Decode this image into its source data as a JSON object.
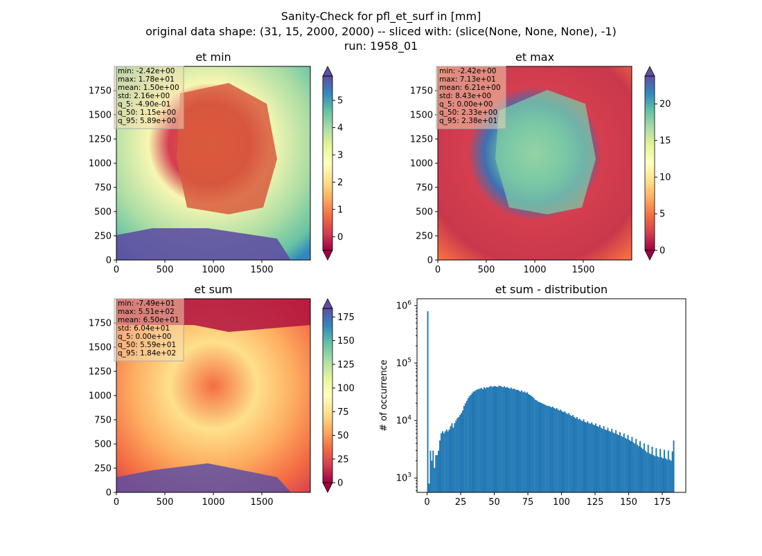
{
  "figure": {
    "title_line1": "Sanity-Check for pfl_et_surf in [mm]",
    "title_line2": "original data shape: (31, 15, 2000, 2000) -- sliced with: (slice(None, None, None), -1)",
    "title_line3": "run: 1958_01"
  },
  "colors": {
    "hist_bar": "#1f77b4",
    "stats_box": "#f5deb3",
    "spectral": [
      "#9e0142",
      "#d53e4f",
      "#f46d43",
      "#fdae61",
      "#fee08b",
      "#ffffbf",
      "#e6f598",
      "#abdda4",
      "#66c2a5",
      "#3288bd",
      "#5e4fa2"
    ]
  },
  "chart_data": [
    {
      "type": "heatmap",
      "title": "et min",
      "x_ticks": [
        "0",
        "500",
        "1000",
        "1500"
      ],
      "y_ticks": [
        "0",
        "250",
        "500",
        "750",
        "1000",
        "1250",
        "1500",
        "1750"
      ],
      "xlim": [
        0,
        2000
      ],
      "ylim": [
        0,
        2000
      ],
      "colormap": "Spectral",
      "colorbar": {
        "ticks": [
          "0",
          "1",
          "2",
          "3",
          "4",
          "5"
        ],
        "range": [
          -0.5,
          5.89
        ],
        "extend": "both"
      },
      "stats": [
        "min: -2.42e+00",
        "max: 1.78e+01",
        "mean: 1.50e+00",
        "std: 2.16e+00",
        "q_5: -4.90e-01",
        "q_50: 1.15e+00",
        "q_95: 5.89e+00"
      ]
    },
    {
      "type": "heatmap",
      "title": "et max",
      "x_ticks": [
        "0",
        "500",
        "1000",
        "1500"
      ],
      "y_ticks": [
        "0",
        "250",
        "500",
        "750",
        "1000",
        "1250",
        "1500",
        "1750"
      ],
      "xlim": [
        0,
        2000
      ],
      "ylim": [
        0,
        2000
      ],
      "colormap": "Spectral",
      "colorbar": {
        "ticks": [
          "0",
          "5",
          "10",
          "15",
          "20"
        ],
        "range": [
          0,
          23.8
        ],
        "extend": "both"
      },
      "stats": [
        "min: -2.42e+00",
        "max: 7.13e+01",
        "mean: 6.21e+00",
        "std: 8.43e+00",
        "q_5: 0.00e+00",
        "q_50: 2.33e+00",
        "q_95: 2.38e+01"
      ]
    },
    {
      "type": "heatmap",
      "title": "et sum",
      "x_ticks": [
        "0",
        "500",
        "1000",
        "1500"
      ],
      "y_ticks": [
        "0",
        "250",
        "500",
        "750",
        "1000",
        "1250",
        "1500",
        "1750"
      ],
      "xlim": [
        0,
        2000
      ],
      "ylim": [
        0,
        2000
      ],
      "colormap": "Spectral",
      "colorbar": {
        "ticks": [
          "0",
          "25",
          "50",
          "75",
          "100",
          "125",
          "150",
          "175"
        ],
        "range": [
          0,
          184
        ],
        "extend": "both"
      },
      "stats": [
        "min: -7.49e+01",
        "max: 5.51e+02",
        "mean: 6.50e+01",
        "std: 6.04e+01",
        "q_5: 0.00e+00",
        "q_50: 5.59e+01",
        "q_95: 1.84e+02"
      ]
    },
    {
      "type": "bar",
      "title": "et sum - distribution",
      "ylabel": "# of occurrence",
      "xlabel": "",
      "x_ticks": [
        "0",
        "25",
        "50",
        "75",
        "100",
        "125",
        "150",
        "175"
      ],
      "y_ticks": [
        {
          "base": "10",
          "exp": "3"
        },
        {
          "base": "10",
          "exp": "4"
        },
        {
          "base": "10",
          "exp": "5"
        },
        {
          "base": "10",
          "exp": "6"
        }
      ],
      "xlim": [
        -7.5,
        192.5
      ],
      "ylog": true,
      "ylim_log10": [
        2.75,
        6.12
      ],
      "bin_width": 1,
      "x": [
        0,
        1,
        2,
        3,
        4,
        5,
        6,
        7,
        8,
        9,
        10,
        11,
        12,
        13,
        14,
        15,
        16,
        17,
        18,
        19,
        20,
        21,
        22,
        23,
        24,
        25,
        26,
        27,
        28,
        29,
        30,
        31,
        32,
        33,
        34,
        35,
        36,
        37,
        38,
        39,
        40,
        41,
        42,
        43,
        44,
        45,
        46,
        47,
        48,
        49,
        50,
        51,
        52,
        53,
        54,
        55,
        56,
        57,
        58,
        59,
        60,
        61,
        62,
        63,
        64,
        65,
        66,
        67,
        68,
        69,
        70,
        71,
        72,
        73,
        74,
        75,
        76,
        77,
        78,
        79,
        80,
        81,
        82,
        83,
        84,
        85,
        86,
        87,
        88,
        89,
        90,
        91,
        92,
        93,
        94,
        95,
        96,
        97,
        98,
        99,
        100,
        101,
        102,
        103,
        104,
        105,
        106,
        107,
        108,
        109,
        110,
        111,
        112,
        113,
        114,
        115,
        116,
        117,
        118,
        119,
        120,
        121,
        122,
        123,
        124,
        125,
        126,
        127,
        128,
        129,
        130,
        131,
        132,
        133,
        134,
        135,
        136,
        137,
        138,
        139,
        140,
        141,
        142,
        143,
        144,
        145,
        146,
        147,
        148,
        149,
        150,
        151,
        152,
        153,
        154,
        155,
        156,
        157,
        158,
        159,
        160,
        161,
        162,
        163,
        164,
        165,
        166,
        167,
        168,
        169,
        170,
        171,
        172,
        173,
        174,
        175,
        176,
        177,
        178,
        179,
        180,
        181,
        182,
        183
      ],
      "values": [
        800000,
        800,
        3000,
        2000,
        3000,
        1500,
        2500,
        2500,
        3000,
        4500,
        6000,
        6500,
        6000,
        6500,
        7000,
        6500,
        7000,
        8000,
        9000,
        7500,
        9000,
        10000,
        11000,
        11500,
        12500,
        13500,
        15000,
        18000,
        20000,
        22000,
        24500,
        26500,
        28000,
        30000,
        32000,
        32500,
        34000,
        35000,
        35500,
        36000,
        37000,
        35000,
        38000,
        36500,
        38000,
        37500,
        39000,
        40000,
        38500,
        39500,
        40000,
        39000,
        38500,
        40500,
        40000,
        39000,
        38000,
        39500,
        37500,
        38500,
        37000,
        36000,
        37500,
        35500,
        36000,
        35000,
        34000,
        34500,
        33000,
        32000,
        33500,
        31000,
        32000,
        30500,
        31000,
        29000,
        28000,
        27000,
        26000,
        24500,
        23000,
        22500,
        21500,
        21000,
        20500,
        20000,
        19500,
        19000,
        18500,
        18000,
        18000,
        17500,
        17000,
        17500,
        16500,
        16000,
        16500,
        15500,
        15000,
        15500,
        14500,
        14000,
        14500,
        13500,
        13000,
        13500,
        12500,
        12000,
        12500,
        11500,
        11000,
        11500,
        10500,
        10800,
        10200,
        9800,
        10500,
        9500,
        9200,
        9700,
        9000,
        8800,
        9300,
        8600,
        8300,
        8900,
        8000,
        7800,
        8400,
        7500,
        7200,
        8000,
        7000,
        6800,
        7500,
        6600,
        6400,
        7200,
        6200,
        6000,
        6800,
        5800,
        5600,
        6300,
        5400,
        5200,
        6000,
        5000,
        4800,
        5600,
        4600,
        4400,
        5200,
        4200,
        4000,
        4800,
        3800,
        3600,
        4400,
        3400,
        3200,
        4000,
        3000,
        2800,
        3800,
        2700,
        2600,
        3500,
        2500,
        2400,
        3300,
        2400,
        2300,
        3200,
        2300,
        2200,
        3100,
        2200,
        2100,
        3000,
        2100,
        2000,
        2900,
        4500
      ]
    }
  ]
}
